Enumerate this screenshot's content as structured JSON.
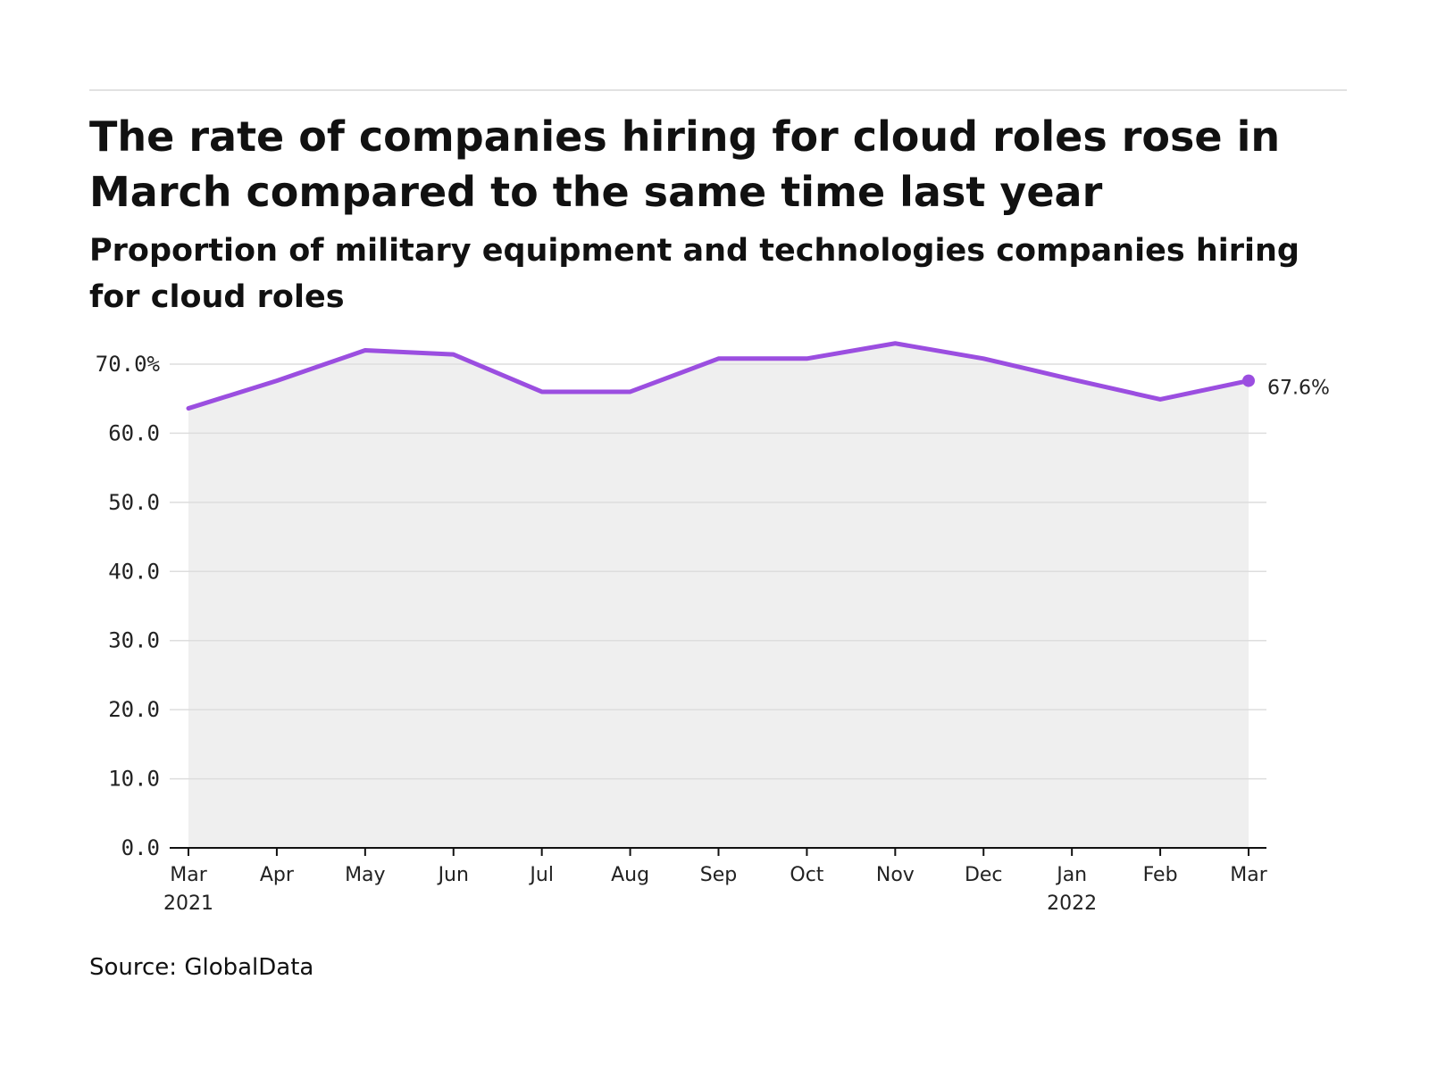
{
  "header": {
    "title": "The rate of companies hiring for cloud roles rose in March compared to the same time last year",
    "subtitle": "Proportion of military equipment and technologies companies hiring for cloud roles"
  },
  "footer": {
    "source": "Source: GlobalData"
  },
  "colors": {
    "line": "#9b4ee0",
    "area": "#efefef",
    "grid": "#dddddd",
    "axis": "#111111"
  },
  "chart_data": {
    "type": "area",
    "title": "The rate of companies hiring for cloud roles rose in March compared to the same time last year",
    "subtitle": "Proportion of military equipment and technologies companies hiring for cloud roles",
    "categories": [
      "Mar",
      "Apr",
      "May",
      "Jun",
      "Jul",
      "Aug",
      "Sep",
      "Oct",
      "Nov",
      "Dec",
      "Jan",
      "Feb",
      "Mar"
    ],
    "category_years": [
      "2021",
      "",
      "",
      "",
      "",
      "",
      "",
      "",
      "",
      "",
      "2022",
      "",
      ""
    ],
    "values": [
      63.6,
      67.6,
      72.0,
      71.4,
      66.0,
      66.0,
      70.8,
      70.8,
      73.0,
      70.8,
      67.8,
      64.9,
      67.6
    ],
    "yticks": [
      "0.0",
      "10.0",
      "20.0",
      "30.0",
      "40.0",
      "50.0",
      "60.0",
      "70.0%"
    ],
    "ytick_values": [
      0,
      10,
      20,
      30,
      40,
      50,
      60,
      70
    ],
    "ylim": [
      0,
      70
    ],
    "end_label": "67.6%",
    "grid": true,
    "legend": "none"
  }
}
